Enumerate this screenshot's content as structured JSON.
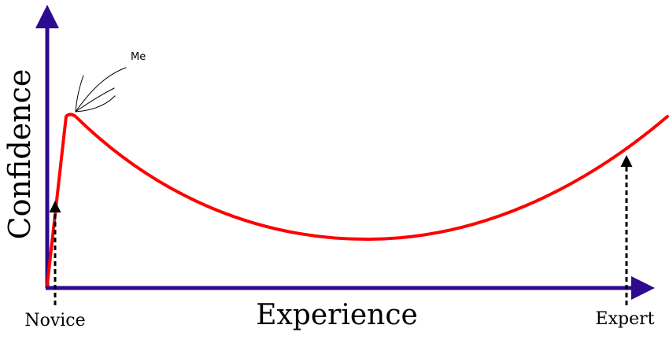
{
  "axes": {
    "x_label": "Experience",
    "y_label": "Confidence",
    "axis_color": "#2e0a8f"
  },
  "markers": [
    {
      "label": "Novice"
    },
    {
      "label": "Expert"
    }
  ],
  "curve": {
    "color": "#ff0000"
  },
  "annotation": {
    "label": "Me"
  }
}
